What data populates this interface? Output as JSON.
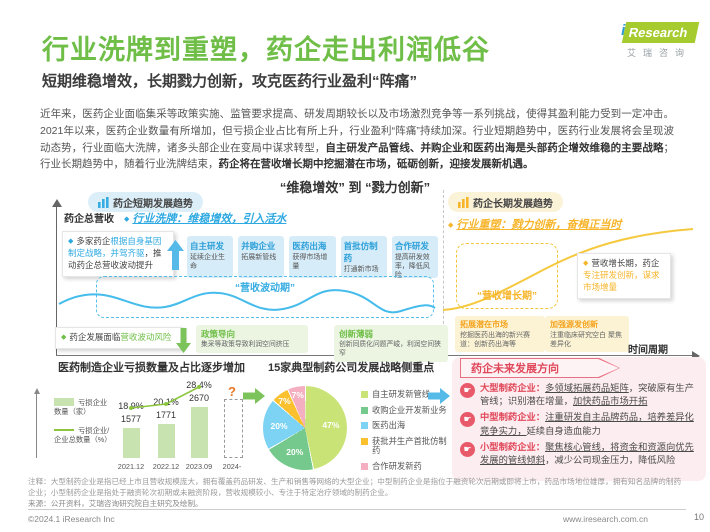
{
  "page": {
    "logo": {
      "i": "i",
      "brand": "Research",
      "brand_cn": "艾瑞咨询"
    },
    "footer": {
      "copyright": "©2024.1 iResearch Inc",
      "website": "www.iresearch.com.cn",
      "page_number": "10"
    }
  },
  "header": {
    "title": "行业洗牌到重塑，药企走出利润低谷",
    "subtitle": "短期维稳增效，长期戮力创新，攻克医药行业盈利“阵痛”"
  },
  "intro": {
    "p1": "近年来，医药企业面临集采等政策实施、监管要求提高、研发周期较长以及市场激烈竞争等一系列挑战，使得其盈利能力受到一定冲击。2021年以来，医药企业数量有所增加，但亏损企业占比有所上升，行业盈利“阵痛”持续加深。行业短期趋势中，医药行业发展将会呈现波动态势，行业面临大洗牌，诸多头部企业在变局中谋求转型，",
    "b1": "自主研发产品管线、并购企业和医药出海是头部药企增效维稳的主要战略",
    "p2": "；行业长期趋势中，随着行业洗牌结束，",
    "b2": "药企将在营收增长期中挖掘潜在市场，砥砺创新，迎接发展新机遇。"
  },
  "diagram": {
    "header": "“维稳增效” 到 “戮力创新”",
    "short_term": {
      "pill": "药企短期发展趋势",
      "y_axis": "药企总营收",
      "headline": "行业洗牌：维稳增效，引入活水",
      "note": {
        "prefix": "多家药企",
        "highlight": "根据自身基因制定战略，并驾齐驱",
        "suffix": "，推动药企总营收波动提升"
      },
      "strategies": [
        {
          "title": "自主研发",
          "desc": "延续企业生命"
        },
        {
          "title": "并购企业",
          "desc": "拓展新管线"
        },
        {
          "title": "医药出海",
          "desc": "获得市场增量"
        },
        {
          "title": "首批仿制药",
          "desc": "打通新市场"
        },
        {
          "title": "合作研发",
          "desc": "提高研发效率，降低风险"
        }
      ],
      "wave_label": "“营收波动期”",
      "risk_note": {
        "prefix": "药企发展面临",
        "highlight": "营收波动风险"
      },
      "risks": [
        {
          "title": "政策导向",
          "desc": "集采等政策导致利润空间挤压"
        },
        {
          "title": "创新薄弱",
          "desc": "创新同质化问题严峻，利润空间狭窄"
        }
      ]
    },
    "long_term": {
      "pill": "药企长期发展趋势",
      "headline": "行业重塑：戮力创新，奋楫正当时",
      "growth_label": "“营收增长期”",
      "note": {
        "prefix": "营收增长期，药企",
        "highlight": "专注研发创新，谋求市场增量"
      },
      "actions": [
        {
          "title": "拓展潜在市场",
          "desc": "挖掘医药出海的新兴赛道：创新药出海等"
        },
        {
          "title": "加强源发创新",
          "desc": "注重临床研究空白 聚焦差异化"
        }
      ],
      "x_axis": "时间周期"
    }
  },
  "bottom": {
    "loss_chart_title": "医药制造企业亏损数量及占比逐步增加",
    "pie_title": "15家典型制药公司发展战略侧重点",
    "future": {
      "banner": "药企未来发展方向",
      "items": [
        {
          "label": "大型制药企业：",
          "u1": "多领域拓展药品矩阵",
          "m1": "，突破原有生产管线；识别潜在增量，",
          "u2": "加快药品市场开拓",
          "m2": ""
        },
        {
          "label": "中型制药企业：",
          "u1": "注重研发自主品牌药品，培养差异化竞争实力，",
          "m1": "延续自身造血能力",
          "u2": "",
          "m2": ""
        },
        {
          "label": "小型制药企业：",
          "u1": "聚焦核心管线，将资金和资源向优先发展的管线倾斜",
          "m1": "，减少公司现金压力，降低风险",
          "u2": "",
          "m2": ""
        }
      ]
    }
  },
  "notes": {
    "note": "注释：大型制药企业是指已经上市且营收规模庞大，拥有覆盖药品研发、生产和销售等网络的大型企业；中型制药企业是指位于融资轮次后期或即将上市，药品市场地位雄厚，拥有知名品牌的制药企业；小型制药企业是指处于融资轮次初期或未融资阶段，营收规模较小、专注于特定治疗领域的制药企业。",
    "source": "来源：公开资料，艾瑞咨询研究院自主研究及绘制。"
  },
  "chart_data": [
    {
      "type": "bar",
      "title": "医药制造企业亏损数量及占比逐步增加",
      "categories": [
        "2021.12",
        "2022.12",
        "2023.09",
        "2024-"
      ],
      "series": [
        {
          "name": "亏损企业数量（家）",
          "type": "bar",
          "values": [
            1577,
            1771,
            2670,
            null
          ],
          "color": "#C8E3AF"
        },
        {
          "name": "亏损企业/企业总数量（%）",
          "type": "line",
          "values": [
            18.9,
            20.1,
            28.4,
            null
          ],
          "color": "#8CC63F"
        }
      ],
      "forecast_marker": "?",
      "legend_position": "left",
      "grid": false
    },
    {
      "type": "pie",
      "title": "15家典型制药公司发展战略侧重点",
      "labels": [
        "自主研发新管线",
        "收购企业开发新业务",
        "医药出海",
        "获批并生产首批仿制药",
        "合作研发新药"
      ],
      "values": [
        47,
        20,
        20,
        7,
        7
      ],
      "value_labels": [
        "47%",
        "20%",
        "20%",
        "7%",
        "7%"
      ],
      "colors": [
        "#C9E377",
        "#76C98C",
        "#7DD3F3",
        "#FBC02D",
        "#F4AFC0"
      ],
      "legend_position": "right"
    }
  ]
}
